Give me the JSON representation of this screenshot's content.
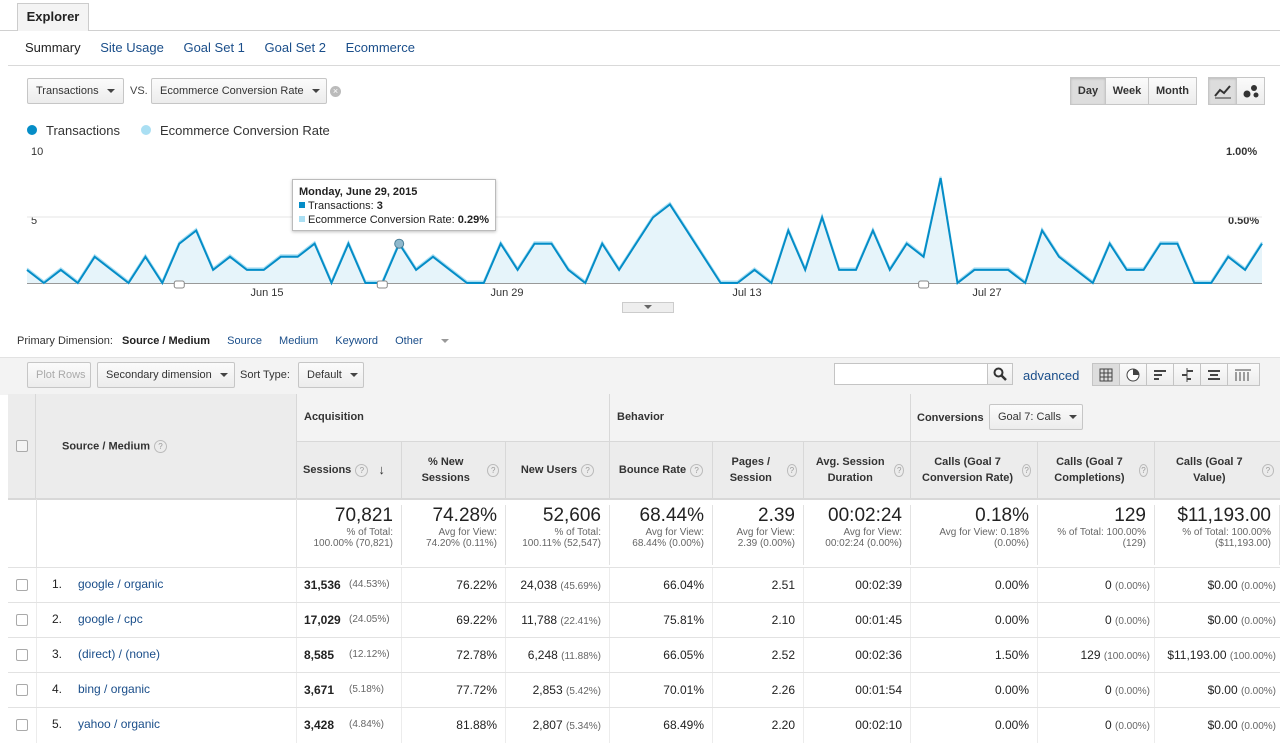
{
  "tabs": {
    "explorer": "Explorer"
  },
  "subtabs": [
    "Summary",
    "Site Usage",
    "Goal Set 1",
    "Goal Set 2",
    "Ecommerce"
  ],
  "metric_selector": {
    "primary": "Transactions",
    "vs": "VS.",
    "secondary": "Ecommerce Conversion Rate"
  },
  "time_buttons": [
    "Day",
    "Week",
    "Month"
  ],
  "legend": [
    {
      "label": "Transactions",
      "color": "#058dc7"
    },
    {
      "label": "Ecommerce Conversion Rate",
      "color": "#aadff3"
    }
  ],
  "chart_data": {
    "type": "line",
    "x_tick_labels": [
      "Jun 15",
      "Jun 29",
      "Jul 13",
      "Jul 27"
    ],
    "y_left_ticks": [
      "10",
      "5"
    ],
    "y_right_ticks": [
      "1.00%",
      "0.50%"
    ],
    "ylim_left": [
      0,
      10
    ],
    "series": [
      {
        "name": "Transactions",
        "color": "#058dc7",
        "values": [
          1,
          0,
          1,
          0,
          2,
          1,
          0,
          2,
          0,
          3,
          4,
          1,
          2,
          1,
          1,
          2,
          2,
          3,
          0,
          3,
          0,
          0,
          3,
          1,
          2,
          1,
          0,
          0,
          3,
          1,
          3,
          3,
          1,
          0,
          3,
          1,
          3,
          5,
          6,
          4,
          2,
          0,
          0,
          1,
          0,
          4,
          1,
          5,
          1,
          1,
          4,
          1,
          3,
          2,
          8,
          0,
          1,
          1,
          1,
          0,
          4,
          2,
          1,
          0,
          3,
          1,
          1,
          3,
          3,
          0,
          0,
          2,
          1,
          3
        ]
      },
      {
        "name": "Ecommerce Conversion Rate",
        "color": "#aadff3",
        "values": [
          1,
          0,
          1,
          0,
          2,
          1,
          0,
          2,
          0,
          3,
          4,
          1,
          2,
          1,
          1,
          2,
          2,
          3,
          0,
          3,
          0,
          0,
          3,
          1,
          2,
          1,
          0,
          0,
          3,
          1,
          3,
          3,
          1,
          0,
          3,
          1,
          3,
          5,
          6,
          4,
          2,
          0,
          0,
          1,
          0,
          4,
          1,
          5,
          1,
          1,
          4,
          1,
          3,
          2,
          8,
          0,
          1,
          1,
          1,
          0,
          4,
          2,
          1,
          0,
          3,
          1,
          1,
          3,
          3,
          0,
          0,
          2,
          1,
          3
        ]
      }
    ]
  },
  "tooltip": {
    "date": "Monday, June 29, 2015",
    "transactions_label": "Transactions: ",
    "transactions_value": "3",
    "rate_label": "Ecommerce Conversion Rate: ",
    "rate_value": "0.29%"
  },
  "primary_dimension": {
    "label": "Primary Dimension:",
    "active": "Source / Medium",
    "options": [
      "Source",
      "Medium",
      "Keyword",
      "Other"
    ]
  },
  "toolbar": {
    "plot_rows": "Plot Rows",
    "secondary_dimension": "Secondary dimension",
    "sort_type_label": "Sort Type:",
    "sort_type": "Default",
    "advanced": "advanced",
    "search_value": ""
  },
  "table": {
    "dimension_header": "Source / Medium",
    "groups": {
      "acquisition": "Acquisition",
      "behavior": "Behavior",
      "conversions": "Conversions",
      "goal_select": "Goal 7: Calls"
    },
    "columns": [
      "Sessions",
      "% New Sessions",
      "New Users",
      "Bounce Rate",
      "Pages / Session",
      "Avg. Session Duration",
      "Calls (Goal 7 Conversion Rate)",
      "Calls (Goal 7 Completions)",
      "Calls (Goal 7 Value)"
    ],
    "totals": [
      {
        "value": "70,821",
        "sub1": "% of Total:",
        "sub2": "100.00% (70,821)"
      },
      {
        "value": "74.28%",
        "sub1": "Avg for View:",
        "sub2": "74.20% (0.11%)"
      },
      {
        "value": "52,606",
        "sub1": "% of Total:",
        "sub2": "100.11% (52,547)"
      },
      {
        "value": "68.44%",
        "sub1": "Avg for View:",
        "sub2": "68.44% (0.00%)"
      },
      {
        "value": "2.39",
        "sub1": "Avg for View:",
        "sub2": "2.39 (0.00%)"
      },
      {
        "value": "00:02:24",
        "sub1": "Avg for View:",
        "sub2": "00:02:24 (0.00%)"
      },
      {
        "value": "0.18%",
        "sub1": "Avg for View: 0.18%",
        "sub2": "(0.00%)"
      },
      {
        "value": "129",
        "sub1": "% of Total: 100.00%",
        "sub2": "(129)"
      },
      {
        "value": "$11,193.00",
        "sub1": "% of Total: 100.00%",
        "sub2": "($11,193.00)"
      }
    ],
    "rows": [
      {
        "idx": "1.",
        "name": "google / organic",
        "sessions": "31,536",
        "sessions_pct": "(44.53%)",
        "new_sessions": "76.22%",
        "new_users": "24,038",
        "new_users_pct": "(45.69%)",
        "bounce": "66.04%",
        "pages": "2.51",
        "duration": "00:02:39",
        "conv_rate": "0.00%",
        "completions": "0",
        "completions_pct": "(0.00%)",
        "value": "$0.00",
        "value_pct": "(0.00%)"
      },
      {
        "idx": "2.",
        "name": "google / cpc",
        "sessions": "17,029",
        "sessions_pct": "(24.05%)",
        "new_sessions": "69.22%",
        "new_users": "11,788",
        "new_users_pct": "(22.41%)",
        "bounce": "75.81%",
        "pages": "2.10",
        "duration": "00:01:45",
        "conv_rate": "0.00%",
        "completions": "0",
        "completions_pct": "(0.00%)",
        "value": "$0.00",
        "value_pct": "(0.00%)"
      },
      {
        "idx": "3.",
        "name": "(direct) / (none)",
        "sessions": "8,585",
        "sessions_pct": "(12.12%)",
        "new_sessions": "72.78%",
        "new_users": "6,248",
        "new_users_pct": "(11.88%)",
        "bounce": "66.05%",
        "pages": "2.52",
        "duration": "00:02:36",
        "conv_rate": "1.50%",
        "completions": "129",
        "completions_pct": "(100.00%)",
        "value": "$11,193.00",
        "value_pct": "(100.00%)"
      },
      {
        "idx": "4.",
        "name": "bing / organic",
        "sessions": "3,671",
        "sessions_pct": "(5.18%)",
        "new_sessions": "77.72%",
        "new_users": "2,853",
        "new_users_pct": "(5.42%)",
        "bounce": "70.01%",
        "pages": "2.26",
        "duration": "00:01:54",
        "conv_rate": "0.00%",
        "completions": "0",
        "completions_pct": "(0.00%)",
        "value": "$0.00",
        "value_pct": "(0.00%)"
      },
      {
        "idx": "5.",
        "name": "yahoo / organic",
        "sessions": "3,428",
        "sessions_pct": "(4.84%)",
        "new_sessions": "81.88%",
        "new_users": "2,807",
        "new_users_pct": "(5.34%)",
        "bounce": "68.49%",
        "pages": "2.20",
        "duration": "00:02:10",
        "conv_rate": "0.00%",
        "completions": "0",
        "completions_pct": "(0.00%)",
        "value": "$0.00",
        "value_pct": "(0.00%)"
      }
    ]
  }
}
